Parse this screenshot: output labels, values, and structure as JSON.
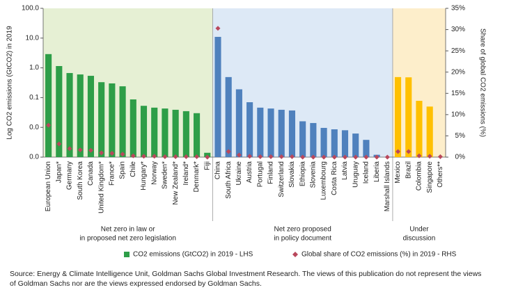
{
  "chart_data": {
    "type": "bar",
    "y_label": "Log CO2 emissions (GtCO2) in 2019",
    "y2_label": "Share of global CO2 emissions (%)",
    "ylog": true,
    "ylim": [
      0.001,
      100
    ],
    "yticks": [
      {
        "value": 0.001,
        "label": "0.0"
      },
      {
        "value": 0.01,
        "label": "0.0"
      },
      {
        "value": 0.1,
        "label": "0.1"
      },
      {
        "value": 1,
        "label": "1.0"
      },
      {
        "value": 10,
        "label": "10.0"
      },
      {
        "value": 100,
        "label": "100.0"
      }
    ],
    "y2lim": [
      0,
      35
    ],
    "y2ticks": [
      {
        "value": 0,
        "label": "0%"
      },
      {
        "value": 5,
        "label": "5%"
      },
      {
        "value": 10,
        "label": "10%"
      },
      {
        "value": 15,
        "label": "15%"
      },
      {
        "value": 20,
        "label": "20%"
      },
      {
        "value": 25,
        "label": "25%"
      },
      {
        "value": 30,
        "label": "30%"
      },
      {
        "value": 35,
        "label": "35%"
      }
    ],
    "categories": [
      "European Union",
      "Japan*",
      "Germany",
      "South Korea",
      "Canada",
      "United Kingdom*",
      "France*",
      "Spain",
      "Chile",
      "Hungary*",
      "Norway",
      "Sweden*",
      "New Zealand*",
      "Ireland*",
      "Denmark*",
      "Fiji",
      "China",
      "South Africa",
      "Ukraine",
      "Austria",
      "Portugal",
      "Finland",
      "Switzerland",
      "Slovakia",
      "Ethiopia",
      "Slovenia",
      "Luxembourg",
      "Costa Rica",
      "Latvia",
      "Uruguay",
      "Iceland",
      "Liberia",
      "Marshall Islands",
      "Mexico",
      "Brazil",
      "Colombia",
      "Singapore",
      "Others**"
    ],
    "groups": [
      {
        "label_lines": [
          "Net zero in law or",
          "in proposed net zero legislation"
        ],
        "size": 16,
        "bar_color": "#2e9e48",
        "background": "#e6f0d4"
      },
      {
        "label_lines": [
          "Net zero proposed",
          "in policy document"
        ],
        "size": 17,
        "bar_color": "#4f81bd",
        "background": "#dde9f6"
      },
      {
        "label_lines": [
          "Under",
          "discussion"
        ],
        "size": 5,
        "bar_color": "#ffc000",
        "background": "#fdeecb"
      }
    ],
    "series": [
      {
        "name": "CO2 emissions (GtCO2) in 2019 - LHS",
        "color": "#2e9e48",
        "values": [
          2.9,
          1.15,
          0.67,
          0.6,
          0.54,
          0.33,
          0.3,
          0.24,
          0.087,
          0.053,
          0.046,
          0.043,
          0.039,
          0.035,
          0.03,
          0.0014,
          11,
          0.49,
          0.19,
          0.07,
          0.046,
          0.043,
          0.039,
          0.037,
          0.016,
          0.014,
          0.0096,
          0.0086,
          0.008,
          0.0062,
          0.0038,
          0.0012,
          0.001,
          0.49,
          0.48,
          0.078,
          0.05,
          null
        ]
      },
      {
        "name": "Global share of CO2 emissions (%) in 2019 - RHS",
        "color": "#b9485c",
        "axis": "y2",
        "values": [
          7.5,
          3.1,
          2.0,
          1.7,
          1.6,
          1.0,
          0.9,
          0.7,
          0.3,
          0.2,
          0.2,
          0.1,
          0.1,
          0.1,
          0.1,
          0.0,
          30.3,
          1.3,
          0.5,
          0.2,
          0.1,
          0.1,
          0.1,
          0.1,
          0.0,
          0.0,
          0.0,
          0.0,
          0.0,
          0.0,
          0.0,
          0.0,
          0.0,
          1.3,
          1.3,
          0.3,
          0.2,
          0.1
        ]
      }
    ],
    "source_lines": [
      "Source: Energy & Climate Intelligence Unit, Goldman Sachs Global Investment Research. The views of this publication do not represent the views",
      "of Goldman Sachs nor are the views expressed endorsed by Goldman Sachs."
    ]
  }
}
